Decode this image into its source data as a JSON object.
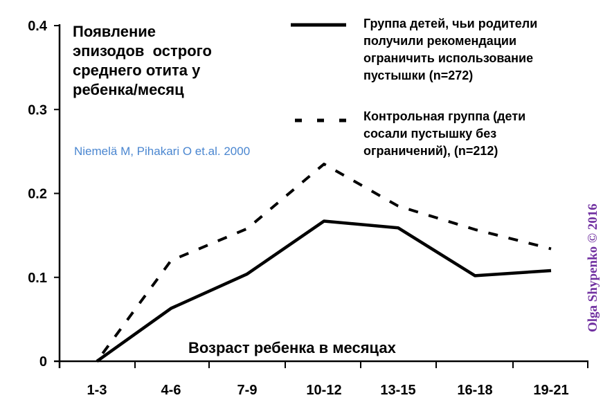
{
  "chart_data": {
    "type": "line",
    "title": "Появление\nэпизодов  острого\nсреднего отита у\nребенка/месяц",
    "xlabel": "Возраст ребенка в месяцах",
    "ylabel": "",
    "categories": [
      "1-3",
      "4-6",
      "7-9",
      "10-12",
      "13-15",
      "16-18",
      "19-21"
    ],
    "ylim": [
      0,
      0.4
    ],
    "yticks": [
      "0",
      "0.1",
      "0.2",
      "0.3",
      "0.4"
    ],
    "grid": false,
    "legend_placement": "top-right",
    "series": [
      {
        "name": "Группа детей, чьи родители\nполучили рекомендации\nограничить использование\nпустышки (n=272)",
        "style": "solid",
        "color": "#000000",
        "values": [
          0,
          0.063,
          0.104,
          0.167,
          0.159,
          0.102,
          0.108
        ]
      },
      {
        "name": "Контрольная группа (дети\nсосали пустышку без\nограничений), (n=212)",
        "style": "dashed",
        "color": "#000000",
        "values": [
          0,
          0.12,
          0.158,
          0.235,
          0.185,
          0.157,
          0.134
        ]
      }
    ],
    "annotations": {
      "source": "Niemelä M, Pihakari O et.al. 2000",
      "watermark": "Olga Shypenko © 2016"
    },
    "colors": {
      "source": "#4a86d0",
      "watermark": "#7030a0"
    }
  }
}
